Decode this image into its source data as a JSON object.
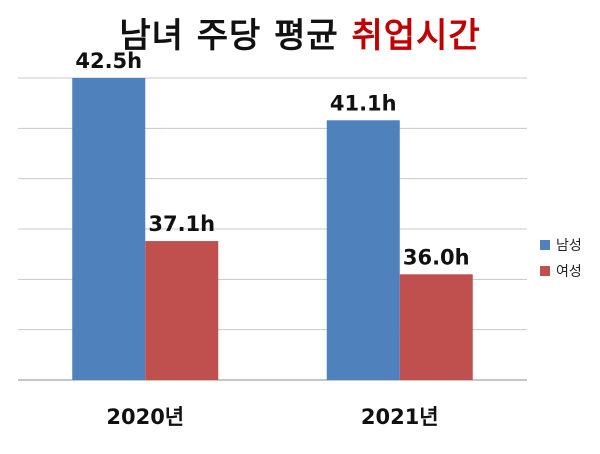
{
  "title": {
    "main": "남녀 주당 평균",
    "accent": "취업시간"
  },
  "chart_data": {
    "type": "bar",
    "title": "남녀 주당 평균 취업시간",
    "categories": [
      "2020년",
      "2021년"
    ],
    "series": [
      {
        "name": "남성",
        "values": [
          42.5,
          41.1
        ],
        "labels": [
          "42.5h",
          "41.1h"
        ],
        "color": "#4f81bd"
      },
      {
        "name": "여성",
        "values": [
          37.1,
          36.0
        ],
        "labels": [
          "37.1h",
          "36.0h"
        ],
        "color": "#c0504d"
      }
    ],
    "ylim": [
      32.5,
      42.5
    ],
    "grid": true,
    "legend": "right"
  }
}
